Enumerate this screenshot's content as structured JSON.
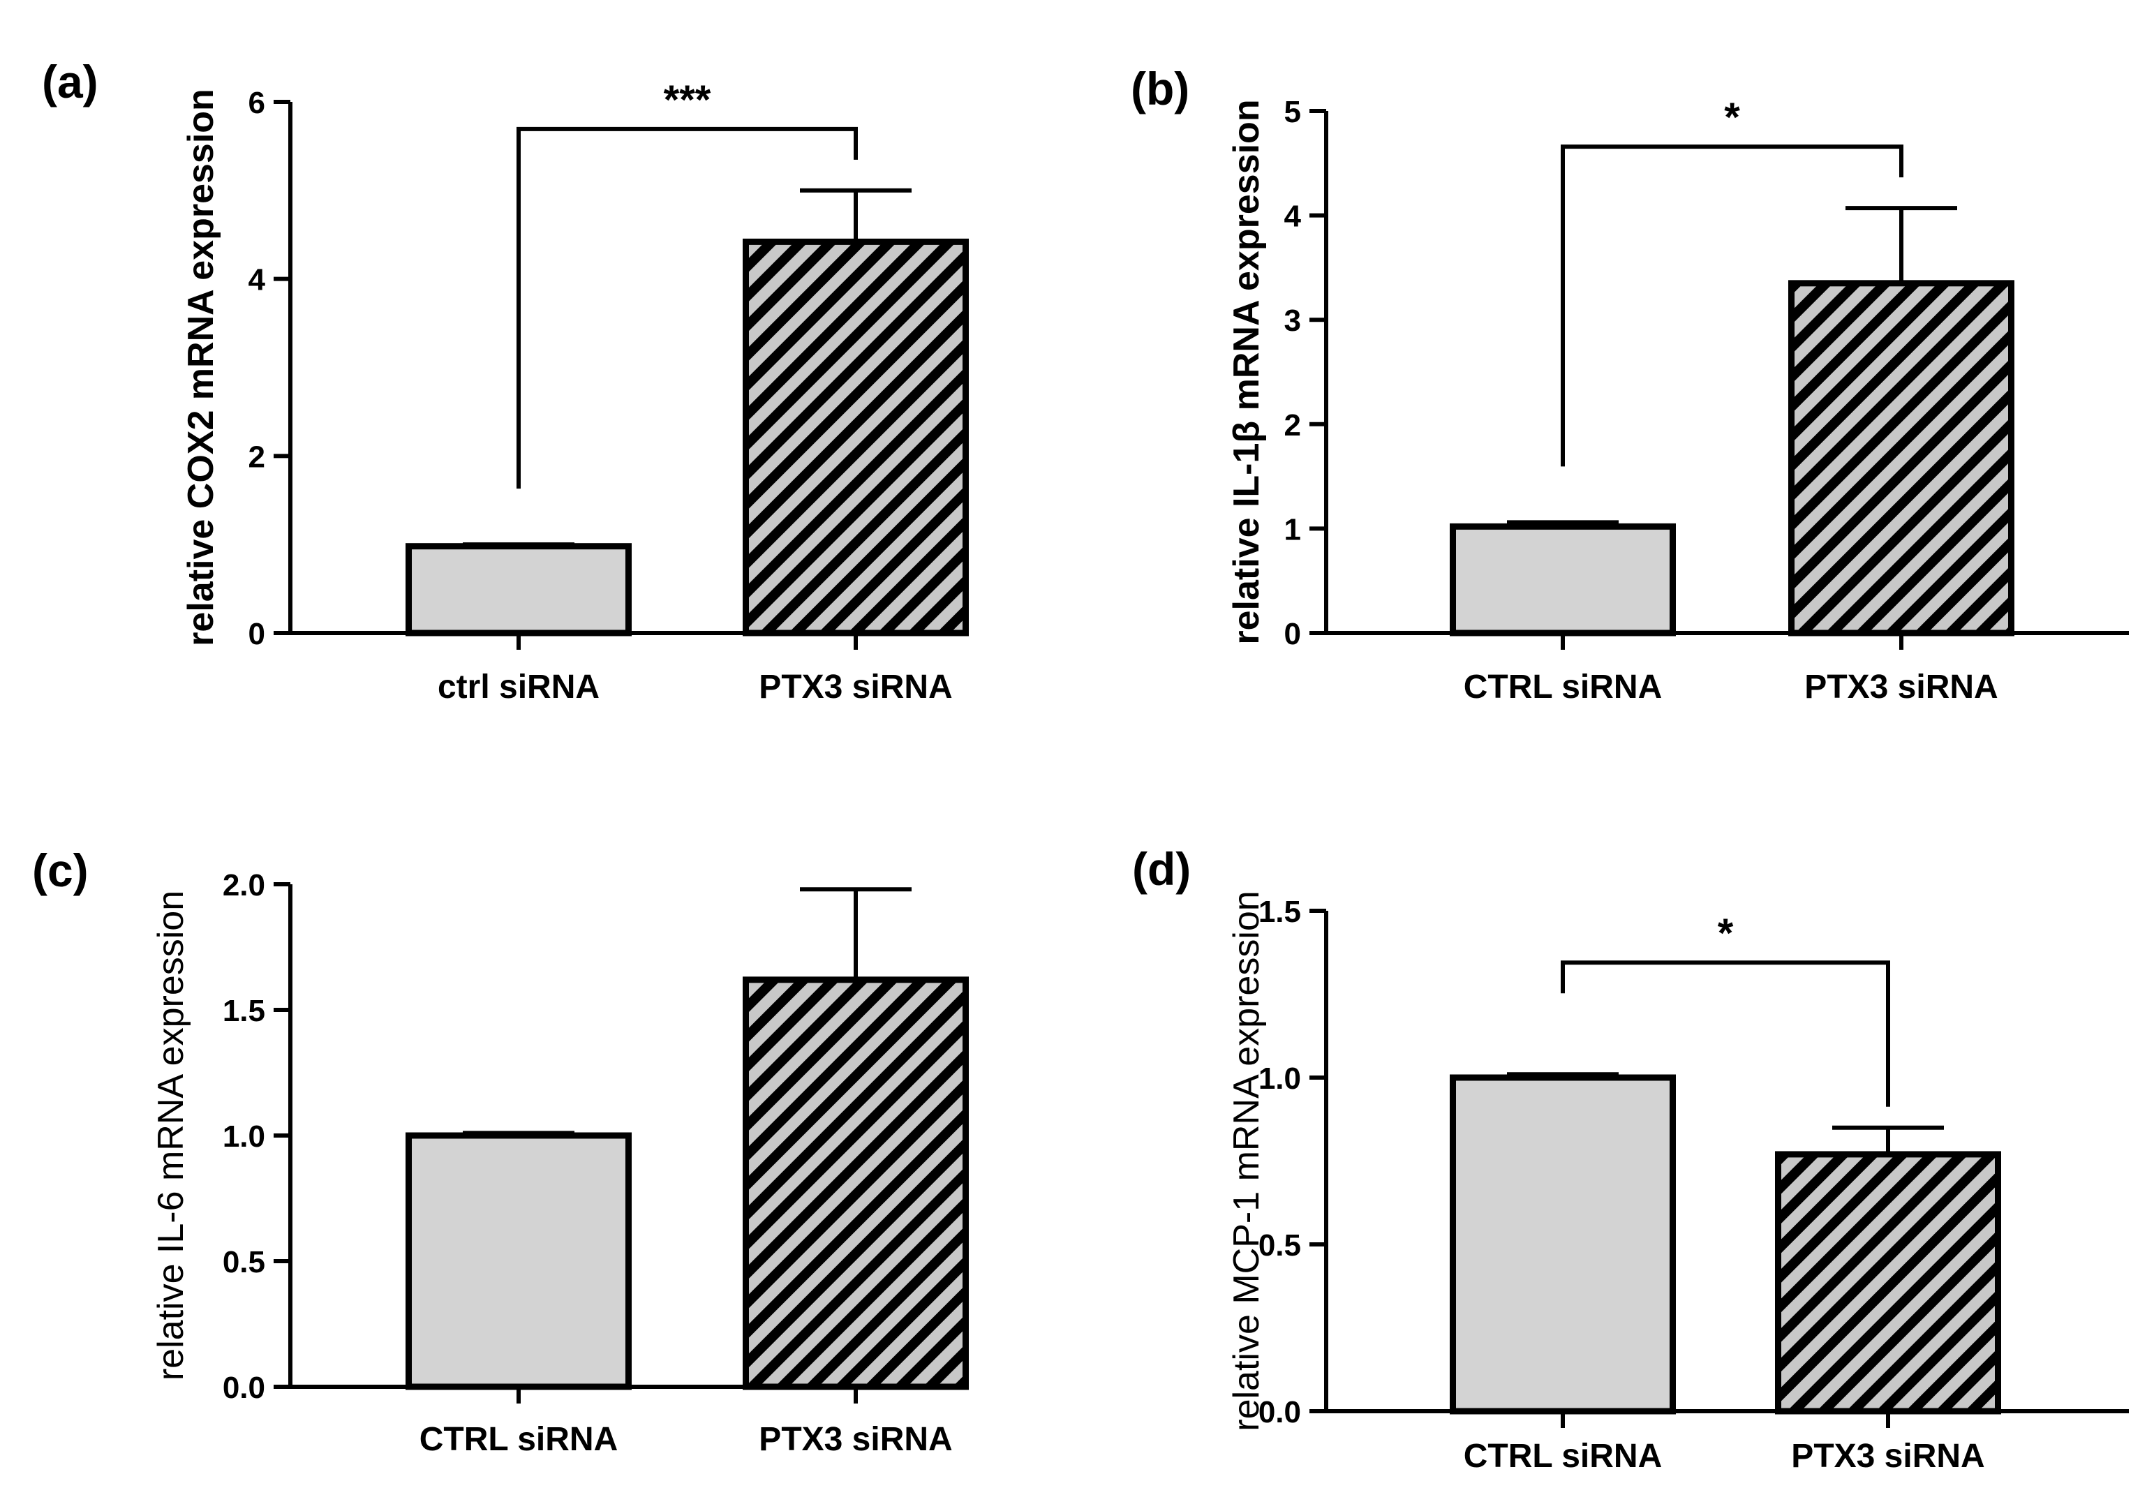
{
  "figure": {
    "colors": {
      "ctrl_fill": "#d3d3d3",
      "ptx3_hatch_bg": "#c8c8c8",
      "ink": "#000000"
    }
  },
  "chart_data": [
    {
      "panel": "(a)",
      "type": "bar",
      "ylabel": "relative COX2 mRNA expression",
      "ylabel_bold": true,
      "ylim": [
        0,
        6
      ],
      "yticks": [
        0,
        2,
        4,
        6
      ],
      "ytick_labels": [
        "0",
        "2",
        "4",
        "6"
      ],
      "categories": [
        "ctrl siRNA",
        "PTX3 siRNA"
      ],
      "values": [
        0.98,
        4.42
      ],
      "errors": [
        0.02,
        0.58
      ],
      "fill_styles": [
        "solid",
        "hatch"
      ],
      "significance": {
        "from": 0,
        "to": 1,
        "label": "***"
      }
    },
    {
      "panel": "(b)",
      "type": "bar",
      "ylabel": "relative IL-1β mRNA expression",
      "ylabel_bold": true,
      "ylim": [
        0,
        5
      ],
      "yticks": [
        0,
        1,
        2,
        3,
        4,
        5
      ],
      "ytick_labels": [
        "0",
        "1",
        "2",
        "3",
        "4",
        "5"
      ],
      "categories": [
        "CTRL siRNA",
        "PTX3 siRNA"
      ],
      "values": [
        1.02,
        3.35
      ],
      "errors": [
        0.04,
        0.72
      ],
      "fill_styles": [
        "solid",
        "hatch"
      ],
      "significance": {
        "from": 0,
        "to": 1,
        "label": "*"
      }
    },
    {
      "panel": "(c)",
      "type": "bar",
      "ylabel": "relative IL-6 mRNA expression",
      "ylabel_bold": false,
      "ylim": [
        0,
        2
      ],
      "yticks": [
        0,
        0.5,
        1,
        1.5,
        2
      ],
      "ytick_labels": [
        "0.0",
        "0.5",
        "1.0",
        "1.5",
        "2.0"
      ],
      "categories": [
        "CTRL siRNA",
        "PTX3 siRNA"
      ],
      "values": [
        1.0,
        1.62
      ],
      "errors": [
        0.01,
        0.36
      ],
      "fill_styles": [
        "solid",
        "hatch"
      ],
      "significance": null
    },
    {
      "panel": "(d)",
      "type": "bar",
      "ylabel": "relative MCP-1 mRNA expression",
      "ylabel_bold": false,
      "ylim": [
        0,
        1.5
      ],
      "yticks": [
        0,
        0.5,
        1,
        1.5
      ],
      "ytick_labels": [
        "0.0",
        "0.5",
        "1.0",
        "1.5"
      ],
      "categories": [
        "CTRL siRNA",
        "PTX3 siRNA"
      ],
      "values": [
        1.0,
        0.77
      ],
      "errors": [
        0.01,
        0.08
      ],
      "fill_styles": [
        "solid",
        "hatch"
      ],
      "significance": {
        "from": 0,
        "to": 1,
        "label": "*"
      }
    }
  ]
}
